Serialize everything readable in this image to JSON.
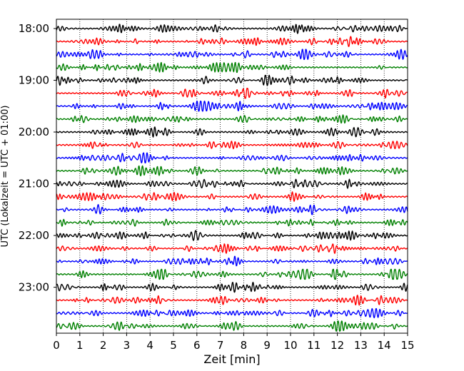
{
  "chart_data": {
    "type": "line",
    "title": "",
    "xlabel": "Zeit  [min]",
    "ylabel": "UTC (Lokalzeit = UTC + 01:00)",
    "xlim": [
      0,
      15
    ],
    "x_ticks": [
      "0",
      "1",
      "2",
      "3",
      "4",
      "5",
      "6",
      "7",
      "8",
      "9",
      "10",
      "11",
      "12",
      "13",
      "14",
      "15"
    ],
    "y_tick_labels": [
      "18:00",
      "19:00",
      "20:00",
      "21:00",
      "22:00",
      "23:00"
    ],
    "grid": "vertical dotted lines at each minute",
    "trace_start": "18:00",
    "trace_interval_minutes": 15,
    "trace_count": 24,
    "trace_colors": [
      "#000000",
      "#ff0000",
      "#0000ff",
      "#008000"
    ]
  }
}
